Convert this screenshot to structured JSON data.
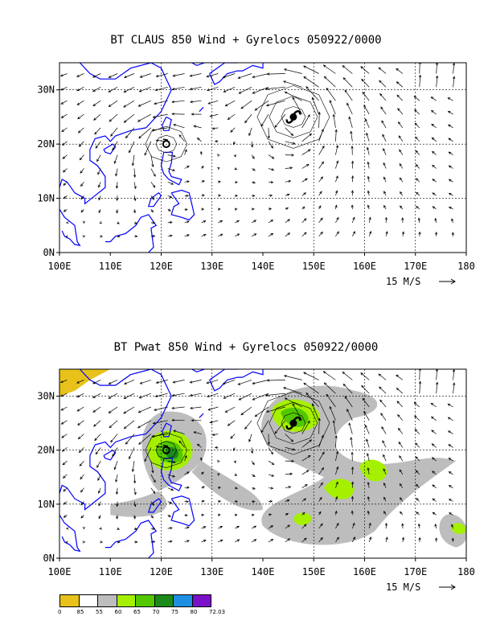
{
  "panels": [
    {
      "title": "BT CLAUS 850 Wind + Gyrelocs 050922/0000",
      "lat_labels": [
        "30N",
        "20N",
        "10N",
        "0N"
      ],
      "lon_labels": [
        "100E",
        "110E",
        "120E",
        "130E",
        "140E",
        "150E",
        "160E",
        "170E",
        "180"
      ],
      "vector_scale_label": "15 M/S",
      "fill": "none"
    },
    {
      "title": "BT Pwat 850 Wind + Gyrelocs 050922/0000",
      "lat_labels": [
        "30N",
        "20N",
        "10N",
        "0N"
      ],
      "lon_labels": [
        "100E",
        "110E",
        "120E",
        "130E",
        "140E",
        "150E",
        "160E",
        "170E",
        "180"
      ],
      "vector_scale_label": "15 M/S",
      "fill": "pwat"
    }
  ],
  "legend": {
    "labels": [
      "0",
      "85",
      "55",
      "60",
      "65",
      "70",
      "75",
      "80",
      "72.03"
    ],
    "colors": [
      "#e8c21a",
      "#ffffff",
      "#bdbdbd",
      "#a5f000",
      "#52c800",
      "#1a8a1a",
      "#1e8fe0",
      "#7a10c8"
    ]
  },
  "symbols": {
    "typhoon_icon": "typhoon-icon",
    "gyre_marker": "gyre-marker-icon"
  },
  "colors": {
    "coastline": "#0000ff",
    "gridline": "#000000",
    "vectors": "#000000"
  }
}
